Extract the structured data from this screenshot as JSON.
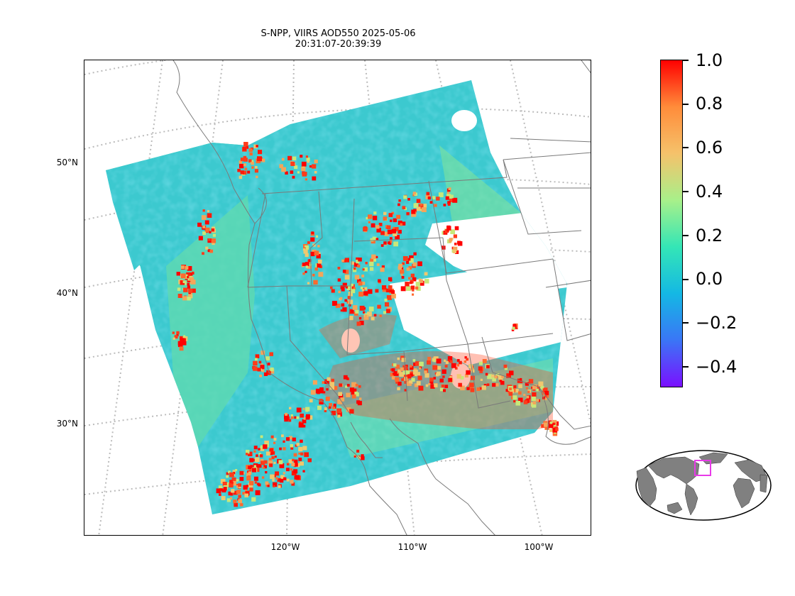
{
  "title": {
    "line1": "S-NPP, VIIRS AOD550 2025-05-06",
    "line2": "20:31:07-20:39:39"
  },
  "map": {
    "projection": "conic",
    "graticule": "dotted",
    "lat_labels": [
      "50°N",
      "40°N",
      "30°N"
    ],
    "lon_labels": [
      "120°W",
      "110°W",
      "100°W"
    ]
  },
  "colorbar": {
    "colormap": "rainbow",
    "min": -0.5,
    "max": 1.0,
    "tick_labels": [
      "1.0",
      "0.8",
      "0.6",
      "0.4",
      "0.2",
      "0.0",
      "−0.2",
      "−0.4"
    ],
    "colors": [
      "#ff0000",
      "#ff8c3a",
      "#f5c26b",
      "#a8f08a",
      "#34e6b6",
      "#14b8e4",
      "#3a76f6",
      "#7a10ff"
    ]
  },
  "inset": {
    "type": "world-locator",
    "highlight_color": "#e83ae8",
    "land_color": "#808080"
  }
}
